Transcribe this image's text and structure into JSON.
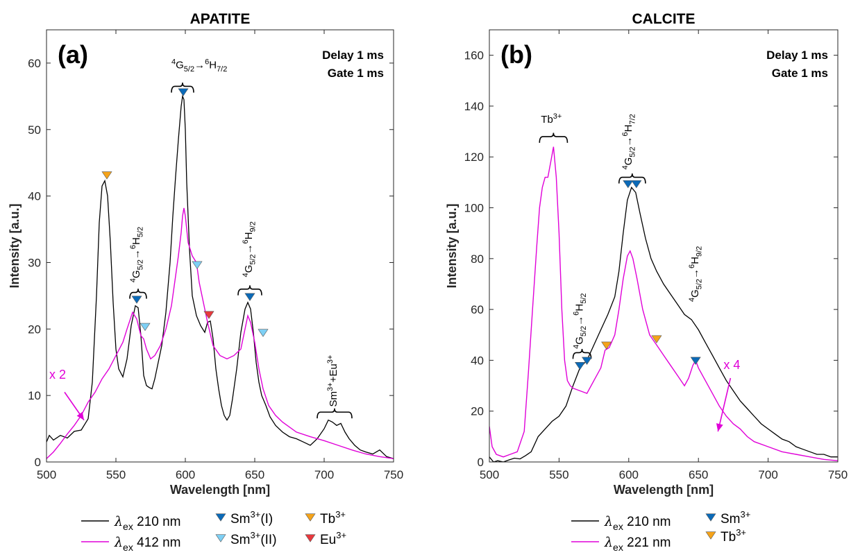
{
  "chart_data": [
    {
      "type": "line",
      "title": "APATITE",
      "panel_label": "(a)",
      "xlabel": "Wavelength [nm]",
      "ylabel": "Intensity [a.u.]",
      "xlim": [
        500,
        750
      ],
      "ylim": [
        0,
        65
      ],
      "xticks": [
        500,
        550,
        600,
        650,
        700,
        750
      ],
      "yticks": [
        0,
        10,
        20,
        30,
        40,
        50,
        60
      ],
      "grid": false,
      "info": [
        "Delay 1 ms",
        "Gate 1 ms"
      ],
      "series": [
        {
          "name": "λex 210 nm",
          "legend_symbol": "λ",
          "legend_sub": "ex",
          "legend_value": "210 nm",
          "color": "#000000",
          "x": [
            500,
            502,
            505,
            510,
            515,
            520,
            525,
            530,
            533,
            536,
            538,
            540,
            542,
            544,
            546,
            548,
            550,
            552,
            555,
            558,
            561,
            564,
            566,
            568,
            570,
            572,
            574,
            576,
            578,
            580,
            583,
            586,
            589,
            591,
            593,
            595,
            597,
            598,
            599,
            600,
            601,
            603,
            605,
            608,
            611,
            614,
            616,
            618,
            620,
            622,
            624,
            626,
            628,
            630,
            632,
            634,
            637,
            640,
            643,
            645,
            647,
            649,
            651,
            653,
            655,
            658,
            661,
            665,
            670,
            675,
            680,
            685,
            690,
            695,
            700,
            703,
            706,
            709,
            712,
            715,
            718,
            722,
            726,
            730,
            735,
            740,
            745,
            750
          ],
          "y": [
            3.0,
            4.0,
            3.3,
            4.0,
            3.6,
            4.6,
            4.8,
            6.5,
            12.0,
            25.0,
            36.0,
            41.5,
            42.3,
            40.0,
            33.0,
            24.0,
            17.0,
            14.0,
            12.8,
            15.5,
            20.5,
            23.5,
            23.2,
            19.0,
            13.0,
            11.5,
            11.2,
            11.0,
            12.5,
            14.5,
            17.5,
            22.5,
            30.0,
            37.0,
            43.0,
            48.5,
            53.5,
            55.0,
            54.5,
            50.0,
            42.0,
            32.0,
            25.0,
            22.0,
            20.5,
            19.5,
            21.0,
            21.2,
            18.5,
            14.0,
            11.0,
            8.5,
            7.0,
            6.3,
            7.0,
            9.5,
            14.0,
            19.5,
            23.0,
            24.0,
            23.0,
            19.5,
            15.0,
            12.0,
            10.0,
            8.5,
            6.8,
            5.5,
            4.5,
            3.8,
            3.5,
            3.0,
            2.5,
            3.5,
            5.0,
            6.3,
            6.0,
            5.5,
            5.8,
            4.5,
            3.5,
            2.5,
            1.8,
            1.5,
            1.2,
            1.8,
            0.8,
            0.5
          ]
        },
        {
          "name": "λex 412 nm",
          "legend_symbol": "λ",
          "legend_sub": "ex",
          "legend_value": "412 nm",
          "color": "#e000d8",
          "x": [
            500,
            505,
            510,
            515,
            520,
            525,
            530,
            535,
            540,
            545,
            550,
            555,
            558,
            562,
            565,
            568,
            570,
            572,
            575,
            578,
            582,
            586,
            590,
            593,
            595,
            597,
            598,
            599,
            600,
            602,
            605,
            608,
            610,
            613,
            616,
            620,
            625,
            630,
            635,
            640,
            643,
            645,
            647,
            650,
            653,
            656,
            660,
            665,
            670,
            680,
            690,
            700,
            710,
            720,
            730,
            740,
            750
          ],
          "y": [
            0.5,
            1.5,
            2.8,
            4.2,
            5.5,
            7.0,
            9.0,
            10.5,
            12.5,
            14.0,
            16.0,
            18.0,
            20.0,
            22.5,
            21.5,
            19.0,
            18.5,
            17.0,
            15.5,
            16.0,
            17.5,
            20.0,
            23.5,
            28.0,
            31.0,
            34.5,
            37.0,
            38.2,
            37.0,
            33.0,
            31.0,
            30.0,
            27.0,
            24.0,
            21.0,
            17.5,
            16.0,
            15.5,
            16.0,
            17.0,
            20.0,
            22.0,
            21.0,
            18.0,
            14.0,
            11.0,
            8.5,
            7.0,
            6.0,
            4.5,
            3.8,
            3.2,
            2.5,
            1.8,
            1.2,
            0.8,
            0.5
          ]
        }
      ],
      "markers": [
        {
          "x": 543.5,
          "y": 43,
          "label": "Tb3+",
          "color": "#f5a31a"
        },
        {
          "x": 565,
          "y": 24.3,
          "label": "Sm3+(I)",
          "color": "#0b6ab8"
        },
        {
          "x": 598.5,
          "y": 55.5,
          "label": "Sm3+(I)",
          "color": "#0b6ab8"
        },
        {
          "x": 646.5,
          "y": 24.7,
          "label": "Sm3+(I)",
          "color": "#0b6ab8"
        },
        {
          "x": 571,
          "y": 20.2,
          "label": "Sm3+(II)",
          "color": "#7ed0f5"
        },
        {
          "x": 608.5,
          "y": 29.5,
          "label": "Sm3+(II)",
          "color": "#7ed0f5"
        },
        {
          "x": 656,
          "y": 19.3,
          "label": "Sm3+(II)",
          "color": "#7ed0f5"
        },
        {
          "x": 617,
          "y": 22.0,
          "label": "Eu3+",
          "color": "#e8383d"
        }
      ],
      "brackets": [
        {
          "x1": 560,
          "x2": 572,
          "y": 25.5,
          "label_main": "4G5/2→6H5/2",
          "label_rot": 90,
          "label_x": 567,
          "label_y": 27,
          "text": {
            "pre_sup": "4",
            "base1": "G",
            "sub1": "5/2",
            "arrow": "→",
            "pre_sup2": "6",
            "base2": "H",
            "sub2": "5/2"
          }
        },
        {
          "x1": 590,
          "x2": 606,
          "y": 56.5,
          "label_rot": 0,
          "label_x": 590,
          "label_y": 59.2,
          "text": {
            "pre_sup": "4",
            "base1": "G",
            "sub1": "5/2",
            "arrow": "→",
            "pre_sup2": "6",
            "base2": "H",
            "sub2": "7/2"
          }
        },
        {
          "x1": 638,
          "x2": 655,
          "y": 26,
          "label_rot": 90,
          "label_x": 648,
          "label_y": 27.8,
          "text": {
            "pre_sup": "4",
            "base1": "G",
            "sub1": "5/2",
            "arrow": "→",
            "pre_sup2": "6",
            "base2": "H",
            "sub2": "9/2"
          }
        },
        {
          "x1": 695,
          "x2": 720,
          "y": 7.5,
          "label_rot": 90,
          "label_x": 709,
          "label_y": 8.3,
          "text": {
            "plain": "Sm",
            "sup": "3+",
            "plain2": "+Eu",
            "sup2": "3+"
          }
        }
      ],
      "scale_note": {
        "text": "x 2",
        "text_x": 502,
        "text_y": 12.5,
        "arrow_from": [
          513,
          10.5
        ],
        "arrow_to": [
          527,
          6.3
        ]
      }
    },
    {
      "type": "line",
      "title": "CALCITE",
      "panel_label": "(b)",
      "xlabel": "Wavelength [nm]",
      "ylabel": "Intensity [a.u.]",
      "xlim": [
        500,
        750
      ],
      "ylim": [
        0,
        170
      ],
      "xticks": [
        500,
        550,
        600,
        650,
        700,
        750
      ],
      "yticks": [
        0,
        20,
        40,
        60,
        80,
        100,
        120,
        140,
        160
      ],
      "grid": false,
      "info": [
        "Delay 1 ms",
        "Gate 1 ms"
      ],
      "series": [
        {
          "name": "λex 210 nm",
          "legend_symbol": "λ",
          "legend_sub": "ex",
          "legend_value": "210 nm",
          "color": "#000000",
          "x": [
            500,
            503,
            506,
            510,
            514,
            518,
            522,
            526,
            530,
            535,
            540,
            545,
            550,
            555,
            560,
            565,
            570,
            575,
            580,
            585,
            590,
            593,
            596,
            599,
            602,
            605,
            608,
            612,
            616,
            620,
            625,
            630,
            635,
            640,
            645,
            650,
            655,
            660,
            665,
            670,
            675,
            680,
            685,
            690,
            695,
            700,
            705,
            710,
            715,
            720,
            725,
            730,
            735,
            740,
            745,
            750
          ],
          "y": [
            2,
            0,
            0.5,
            0,
            0.8,
            1.5,
            1.2,
            2.5,
            4,
            10,
            13,
            16,
            18,
            22,
            30,
            37,
            40,
            46,
            52,
            58,
            65,
            75,
            90,
            103,
            108,
            106,
            98,
            88,
            80,
            75,
            70,
            66,
            62,
            58,
            56,
            52,
            47,
            42,
            37,
            32,
            28,
            24,
            21,
            18,
            15,
            13,
            11,
            9,
            8,
            6,
            5,
            4,
            3,
            3,
            2,
            2
          ]
        },
        {
          "name": "λex 221 nm",
          "legend_symbol": "λ",
          "legend_sub": "ex",
          "legend_value": "221 nm",
          "color": "#e000d8",
          "x": [
            500,
            502,
            505,
            510,
            515,
            520,
            525,
            528,
            531,
            534,
            536,
            538,
            540,
            542,
            544,
            546,
            548,
            550,
            552,
            554,
            556,
            558,
            560,
            565,
            570,
            575,
            580,
            583,
            586,
            590,
            593,
            596,
            599,
            601,
            603,
            606,
            610,
            615,
            620,
            625,
            630,
            635,
            640,
            643,
            646,
            648,
            650,
            655,
            660,
            665,
            670,
            675,
            680,
            685,
            690,
            700,
            710,
            720,
            730,
            740,
            750
          ],
          "y": [
            14,
            6,
            3,
            2,
            3,
            4,
            12,
            35,
            60,
            85,
            100,
            108,
            112,
            112,
            118,
            124,
            112,
            90,
            60,
            40,
            32,
            30,
            29,
            28,
            27,
            32,
            37,
            44,
            45,
            50,
            60,
            72,
            81,
            83,
            80,
            72,
            60,
            50,
            46,
            42,
            38,
            34,
            30,
            33,
            38,
            40,
            37,
            32,
            27,
            22,
            18,
            15,
            13,
            10,
            8,
            6,
            4,
            3,
            2,
            1,
            0.5
          ]
        }
      ],
      "markers": [
        {
          "x": 565,
          "y": 37.5,
          "label": "Sm3+",
          "color": "#0b6ab8"
        },
        {
          "x": 570,
          "y": 39.5,
          "label": "Sm3+",
          "color": "#0b6ab8"
        },
        {
          "x": 599.5,
          "y": 109,
          "label": "Sm3+",
          "color": "#0b6ab8"
        },
        {
          "x": 605.5,
          "y": 109,
          "label": "Sm3+",
          "color": "#0b6ab8"
        },
        {
          "x": 648,
          "y": 39.5,
          "label": "Sm3+",
          "color": "#0b6ab8"
        },
        {
          "x": 584,
          "y": 45.5,
          "label": "Tb3+",
          "color": "#f5a31a"
        },
        {
          "x": 620,
          "y": 48,
          "label": "Tb3+",
          "color": "#f5a31a"
        }
      ],
      "brackets": [
        {
          "x1": 536,
          "x2": 556,
          "y": 128,
          "label_rot": 0,
          "label_x": 537,
          "label_y": 133.5,
          "text": {
            "plain": "Tb",
            "sup": "3+"
          }
        },
        {
          "x1": 593,
          "x2": 612,
          "y": 112,
          "label_rot": 90,
          "label_x": 602,
          "label_y": 115,
          "text": {
            "pre_sup": "4",
            "base1": "G",
            "sub1": "5/2",
            "arrow": "→",
            "pre_sup2": "6",
            "base2": "H",
            "sub2": "7/2"
          }
        },
        {
          "x1": 560,
          "x2": 573,
          "y": 43,
          "label_rot": 90,
          "label_x": 567,
          "label_y": 44.5,
          "text": {
            "pre_sup": "4",
            "base1": "G",
            "sub1": "5/2",
            "arrow": "→",
            "pre_sup2": "6",
            "base2": "H",
            "sub2": "5/2"
          }
        }
      ],
      "free_labels": [
        {
          "label_rot": 90,
          "label_x": 650,
          "label_y": 63,
          "text": {
            "pre_sup": "4",
            "base1": "G",
            "sub1": "5/2",
            "arrow": "→",
            "pre_sup2": "6",
            "base2": "H",
            "sub2": "9/2"
          }
        }
      ],
      "scale_note": {
        "text": "x 4",
        "text_x": 668,
        "text_y": 36.5,
        "arrow_from": [
          673,
          33
        ],
        "arrow_to": [
          664,
          12
        ]
      }
    }
  ],
  "legend_a": {
    "sm1": {
      "base": "Sm",
      "sup": "3+",
      "suffix": "(I)"
    },
    "sm2": {
      "base": "Sm",
      "sup": "3+",
      "suffix": "(II)"
    },
    "tb": {
      "base": "Tb",
      "sup": "3+"
    },
    "eu": {
      "base": "Eu",
      "sup": "3+"
    }
  },
  "legend_b": {
    "sm": {
      "base": "Sm",
      "sup": "3+"
    },
    "tb": {
      "base": "Tb",
      "sup": "3+"
    }
  },
  "colors": {
    "sm1": "#0b6ab8",
    "sm2": "#7ed0f5",
    "tb": "#f5a31a",
    "eu": "#e8383d",
    "black_line": "#000000",
    "magenta_line": "#e000d8"
  }
}
